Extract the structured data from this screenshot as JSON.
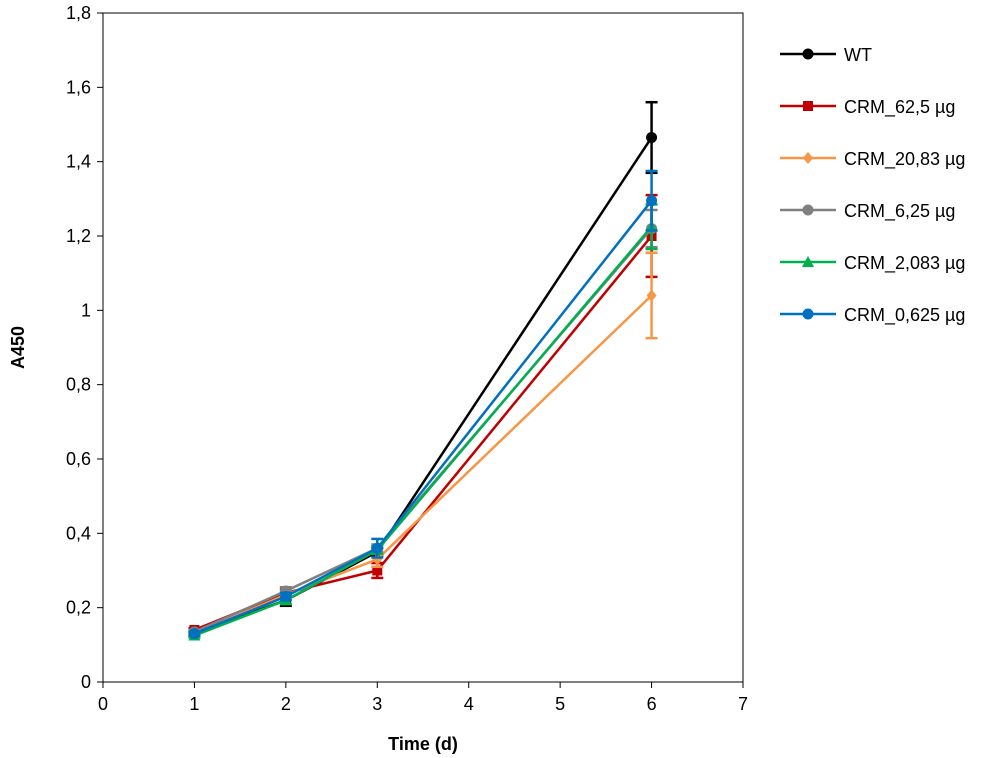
{
  "chart_data": {
    "type": "line",
    "title": "",
    "xlabel": "Time (d)",
    "ylabel": "A450",
    "xlim": [
      0,
      7
    ],
    "ylim": [
      0,
      1.8
    ],
    "x_ticks": [
      0,
      1,
      2,
      3,
      4,
      5,
      6,
      7
    ],
    "x_tick_labels": [
      "0",
      "1",
      "2",
      "3",
      "4",
      "5",
      "6",
      "7"
    ],
    "y_ticks": [
      0,
      0.2,
      0.4,
      0.6,
      0.8,
      1.0,
      1.2,
      1.4,
      1.6,
      1.8
    ],
    "y_tick_labels": [
      "0",
      "0,2",
      "0,4",
      "0,6",
      "0,8",
      "1",
      "1,2",
      "1,4",
      "1,6",
      "1,8"
    ],
    "grid": false,
    "legend_position": "right",
    "x": [
      1,
      2,
      3,
      6
    ],
    "series": [
      {
        "name": "WT",
        "color": "#000000",
        "marker": "circle",
        "values": [
          0.13,
          0.22,
          0.35,
          1.465
        ],
        "errors": [
          0.005,
          0.015,
          0.01,
          0.095
        ]
      },
      {
        "name": "CRM_62,5 µg",
        "color": "#c00000",
        "marker": "square",
        "values": [
          0.14,
          0.24,
          0.3,
          1.2
        ],
        "errors": [
          0.005,
          0.01,
          0.02,
          0.11
        ]
      },
      {
        "name": "CRM_20,83 µg",
        "color": "#f79646",
        "marker": "diamond",
        "values": [
          0.13,
          0.235,
          0.33,
          1.04
        ],
        "errors": [
          0.005,
          0.01,
          0.02,
          0.115
        ]
      },
      {
        "name": "CRM_6,25 µg",
        "color": "#808080",
        "marker": "circle",
        "values": [
          0.135,
          0.245,
          0.36,
          1.22
        ],
        "errors": [
          0.005,
          0.01,
          0.01,
          0.05
        ]
      },
      {
        "name": "CRM_2,083 µg",
        "color": "#00b050",
        "marker": "triangle",
        "values": [
          0.125,
          0.22,
          0.355,
          1.225
        ],
        "errors": [
          0.005,
          0.01,
          0.01,
          0.06
        ]
      },
      {
        "name": "CRM_0,625 µg",
        "color": "#0070c0",
        "marker": "circle",
        "values": [
          0.13,
          0.23,
          0.36,
          1.295
        ],
        "errors": [
          0.005,
          0.01,
          0.025,
          0.08
        ]
      }
    ]
  }
}
